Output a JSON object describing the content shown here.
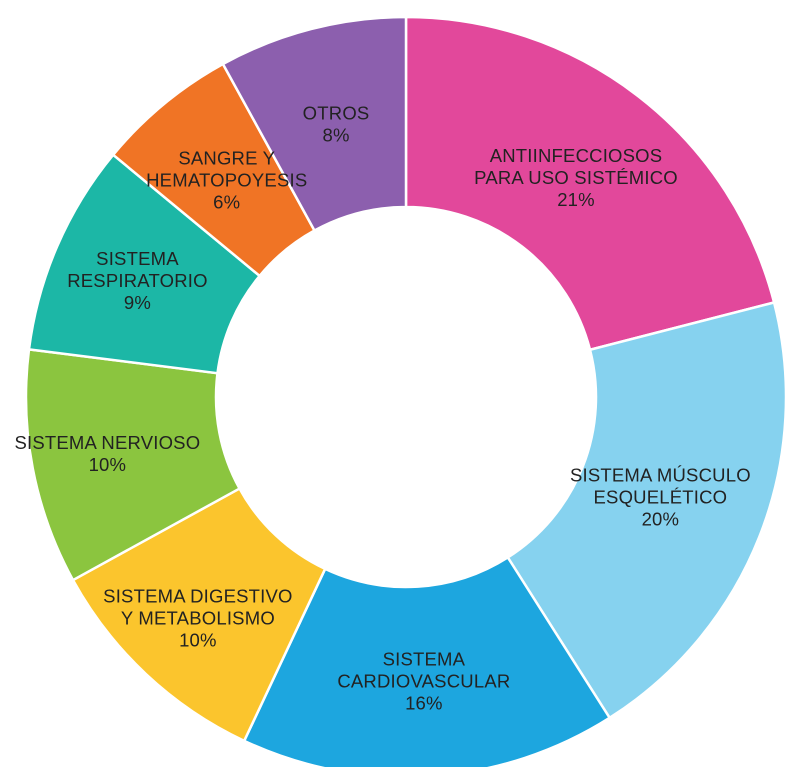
{
  "chart_data": {
    "type": "donut",
    "title": "",
    "slices": [
      {
        "lines": [
          "ANTIINFECCIOSOS",
          "PARA USO SISTÉMICO"
        ],
        "percent_label": "21%",
        "value": 21,
        "color": "#E2489B"
      },
      {
        "lines": [
          "SISTEMA MÚSCULO",
          "ESQUELÉTICO"
        ],
        "percent_label": "20%",
        "value": 20,
        "color": "#86D2EF"
      },
      {
        "lines": [
          "SISTEMA",
          "CARDIOVASCULAR"
        ],
        "percent_label": "16%",
        "value": 16,
        "color": "#1DA6DF"
      },
      {
        "lines": [
          "SISTEMA DIGESTIVO",
          "Y METABOLISMO"
        ],
        "percent_label": "10%",
        "value": 10,
        "color": "#FBC52D"
      },
      {
        "lines": [
          "SISTEMA NERVIOSO"
        ],
        "percent_label": "10%",
        "value": 10,
        "color": "#8BC53F"
      },
      {
        "lines": [
          "SISTEMA",
          "RESPIRATORIO"
        ],
        "percent_label": "9%",
        "value": 9,
        "color": "#1CB7A6"
      },
      {
        "lines": [
          "SANGRE Y",
          "HEMATOPOYESIS"
        ],
        "percent_label": "6%",
        "value": 6,
        "color": "#F07425"
      },
      {
        "lines": [
          "OTROS"
        ],
        "percent_label": "8%",
        "value": 8,
        "color": "#8C5FAE"
      }
    ]
  }
}
